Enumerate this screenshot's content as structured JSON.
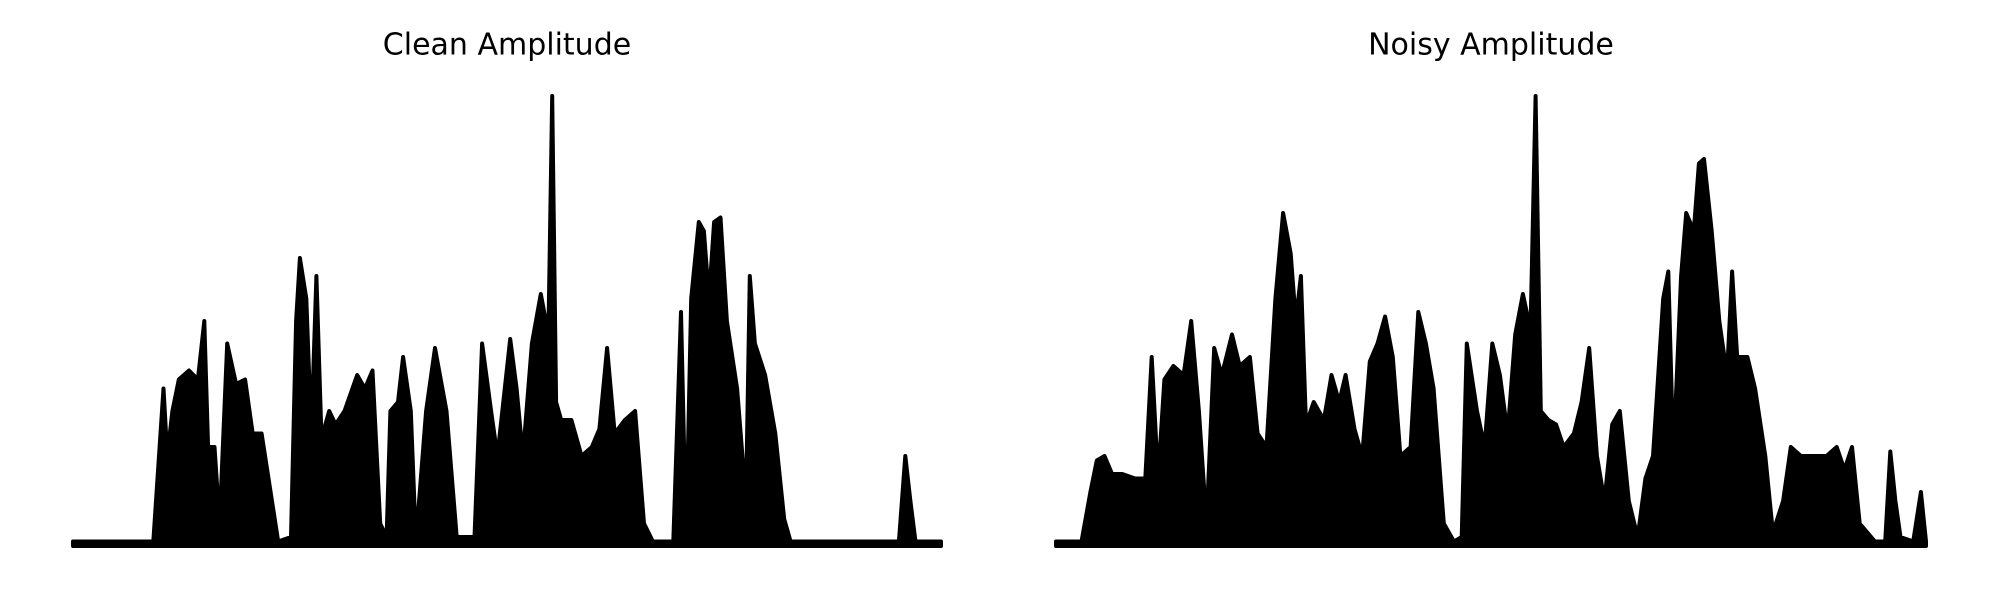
{
  "chart_data": [
    {
      "type": "area",
      "title": "Clean Amplitude",
      "color": "#000000",
      "xlim": [
        0,
        681
      ],
      "ylim": [
        0,
        1
      ],
      "x": [
        0,
        63,
        71,
        74,
        78,
        83,
        91,
        98,
        103,
        106,
        111,
        115,
        121,
        128,
        135,
        141,
        148,
        155,
        161,
        171,
        175,
        178,
        183,
        187,
        191,
        195,
        201,
        206,
        213,
        223,
        229,
        235,
        241,
        246,
        249,
        255,
        259,
        265,
        269,
        277,
        284,
        293,
        301,
        315,
        321,
        328,
        333,
        343,
        348,
        353,
        360,
        367,
        373,
        376,
        379,
        383,
        391,
        399,
        407,
        413,
        419,
        425,
        433,
        441,
        448,
        455,
        471,
        477,
        481,
        485,
        491,
        495,
        499,
        503,
        508,
        513,
        521,
        528,
        531,
        535,
        543,
        551,
        558,
        563,
        648,
        653,
        657,
        661,
        681
      ],
      "values": [
        0.01,
        0.01,
        0.35,
        0.2,
        0.3,
        0.37,
        0.39,
        0.37,
        0.5,
        0.22,
        0.22,
        0.05,
        0.45,
        0.36,
        0.37,
        0.25,
        0.25,
        0.12,
        0.01,
        0.02,
        0.5,
        0.64,
        0.55,
        0.25,
        0.6,
        0.24,
        0.3,
        0.27,
        0.3,
        0.38,
        0.35,
        0.39,
        0.05,
        0.02,
        0.3,
        0.32,
        0.42,
        0.3,
        0.01,
        0.3,
        0.44,
        0.3,
        0.02,
        0.02,
        0.45,
        0.3,
        0.2,
        0.46,
        0.35,
        0.2,
        0.45,
        0.56,
        0.47,
        1.0,
        0.32,
        0.28,
        0.28,
        0.2,
        0.22,
        0.26,
        0.44,
        0.25,
        0.28,
        0.3,
        0.05,
        0.01,
        0.01,
        0.52,
        0.02,
        0.55,
        0.72,
        0.7,
        0.55,
        0.72,
        0.73,
        0.5,
        0.35,
        0.1,
        0.6,
        0.45,
        0.38,
        0.25,
        0.06,
        0.01,
        0.01,
        0.2,
        0.1,
        0.01,
        0.01
      ]
    },
    {
      "type": "area",
      "title": "Noisy Amplitude",
      "color": "#000000",
      "xlim": [
        0,
        682
      ],
      "ylim": [
        0,
        1
      ],
      "x": [
        0,
        20,
        27,
        32,
        38,
        44,
        52,
        62,
        70,
        75,
        80,
        85,
        92,
        100,
        106,
        112,
        118,
        124,
        130,
        138,
        144,
        152,
        158,
        165,
        172,
        178,
        184,
        188,
        192,
        196,
        202,
        210,
        216,
        222,
        227,
        234,
        240,
        246,
        252,
        258,
        264,
        270,
        278,
        284,
        290,
        296,
        304,
        312,
        318,
        322,
        330,
        336,
        342,
        348,
        354,
        360,
        366,
        372,
        376,
        380,
        386,
        392,
        398,
        406,
        412,
        418,
        424,
        430,
        436,
        442,
        449,
        456,
        462,
        468,
        476,
        480,
        484,
        490,
        494,
        500,
        504,
        508,
        514,
        520,
        526,
        530,
        534,
        542,
        548,
        556,
        562,
        570,
        576,
        584,
        594,
        604,
        612,
        618,
        624,
        630,
        642,
        650,
        654,
        658,
        662,
        672,
        678,
        682
      ],
      "values": [
        0.01,
        0.01,
        0.12,
        0.19,
        0.2,
        0.16,
        0.16,
        0.15,
        0.15,
        0.42,
        0.15,
        0.37,
        0.4,
        0.38,
        0.5,
        0.3,
        0.05,
        0.44,
        0.38,
        0.47,
        0.4,
        0.42,
        0.25,
        0.22,
        0.55,
        0.74,
        0.65,
        0.5,
        0.6,
        0.27,
        0.32,
        0.28,
        0.38,
        0.32,
        0.38,
        0.26,
        0.2,
        0.41,
        0.45,
        0.51,
        0.42,
        0.2,
        0.22,
        0.52,
        0.45,
        0.35,
        0.05,
        0.01,
        0.02,
        0.45,
        0.3,
        0.22,
        0.45,
        0.38,
        0.25,
        0.47,
        0.56,
        0.48,
        1.0,
        0.3,
        0.28,
        0.27,
        0.22,
        0.25,
        0.32,
        0.44,
        0.2,
        0.1,
        0.27,
        0.3,
        0.1,
        0.02,
        0.15,
        0.2,
        0.55,
        0.61,
        0.2,
        0.6,
        0.74,
        0.7,
        0.85,
        0.86,
        0.7,
        0.5,
        0.38,
        0.61,
        0.42,
        0.42,
        0.35,
        0.2,
        0.03,
        0.1,
        0.22,
        0.2,
        0.2,
        0.2,
        0.22,
        0.17,
        0.22,
        0.05,
        0.01,
        0.01,
        0.21,
        0.1,
        0.02,
        0.01,
        0.12,
        0.01
      ]
    }
  ]
}
